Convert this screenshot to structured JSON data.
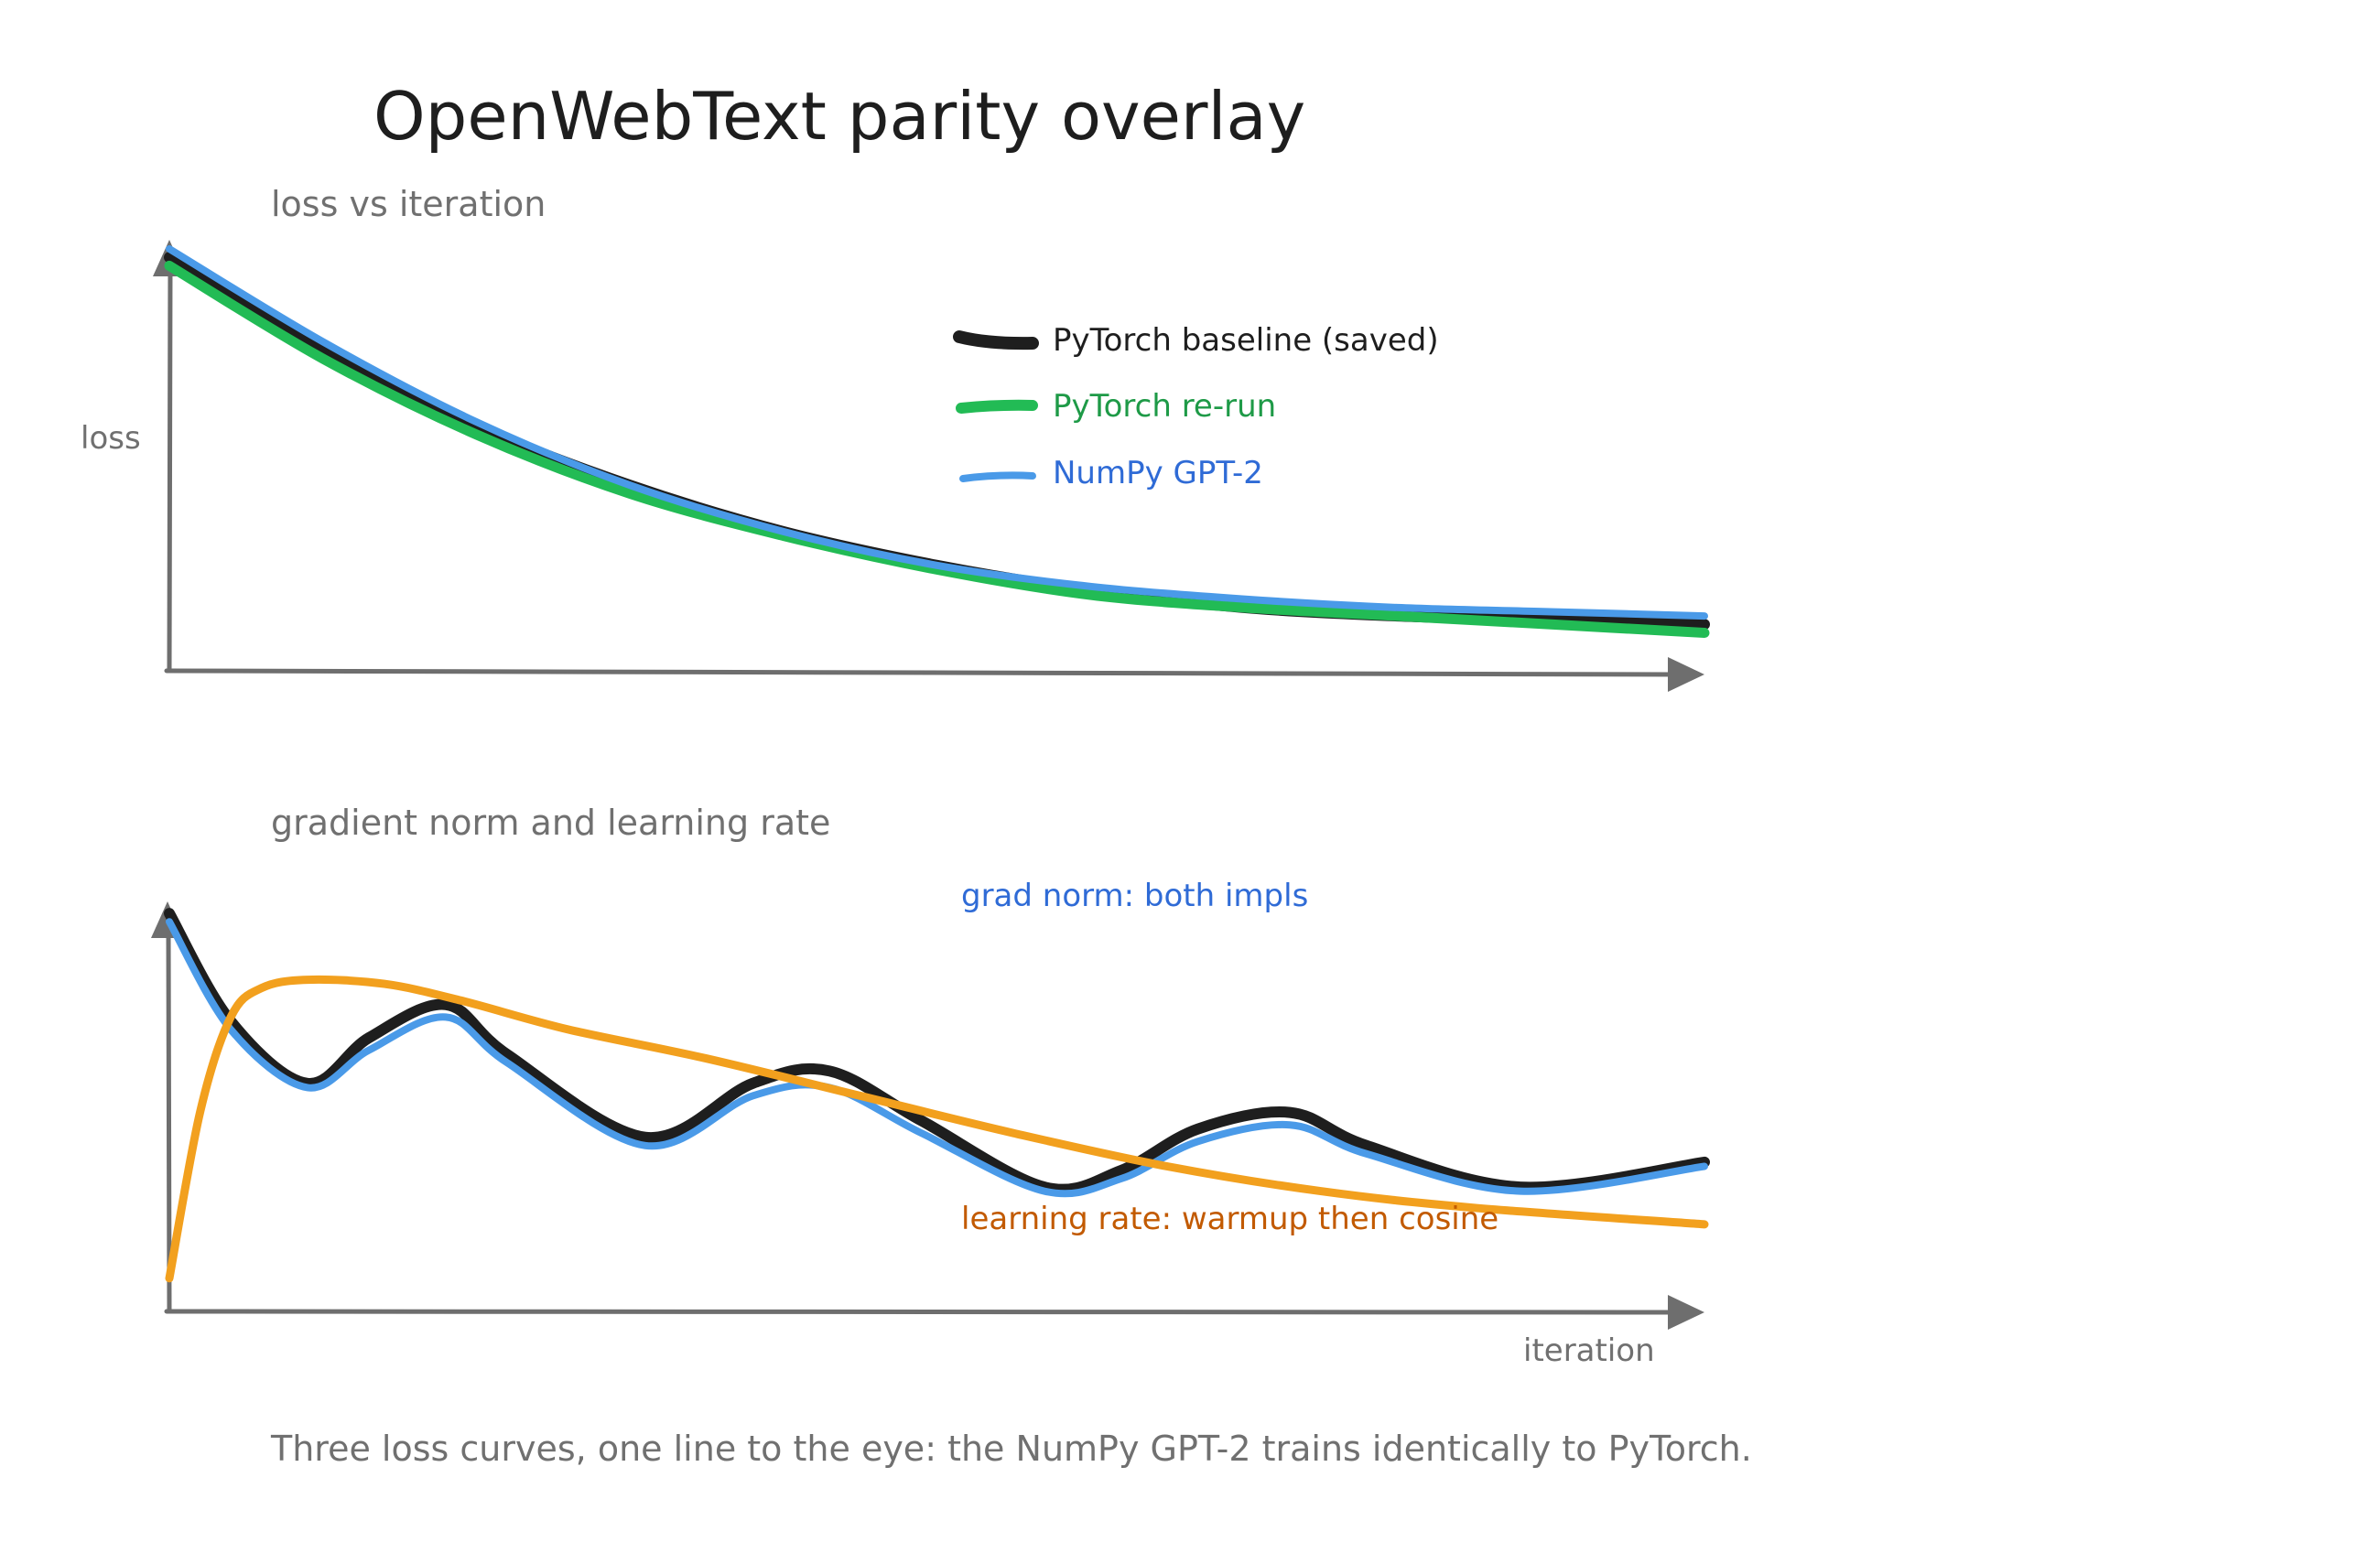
{
  "title": "OpenWebText parity overlay",
  "caption": "Three loss curves, one line to the eye: the NumPy GPT-2 trains identically to PyTorch.",
  "chart_data": [
    {
      "type": "line",
      "subtitle": "loss vs iteration",
      "xlabel": "",
      "ylabel": "loss",
      "xlim": [
        0,
        100
      ],
      "ylim": [
        0,
        100
      ],
      "grid": false,
      "legend_placement": "top-center",
      "series": [
        {
          "name": "PyTorch baseline (saved)",
          "color": "#1e1e1e",
          "x": [
            0,
            10,
            20,
            30,
            40,
            50,
            60,
            70,
            80,
            90,
            100
          ],
          "values": [
            98,
            76,
            58,
            44,
            33,
            25,
            19,
            15,
            13,
            12,
            11
          ]
        },
        {
          "name": "PyTorch re-run",
          "color": "#22bb55",
          "x": [
            0,
            10,
            20,
            30,
            40,
            50,
            60,
            70,
            80,
            90,
            100
          ],
          "values": [
            96,
            74,
            56,
            42,
            32,
            24,
            18,
            15,
            13,
            11,
            9
          ]
        },
        {
          "name": "NumPy GPT-2",
          "color": "#4a9ae8",
          "x": [
            0,
            10,
            20,
            30,
            40,
            50,
            60,
            70,
            80,
            90,
            100
          ],
          "values": [
            100,
            78,
            59,
            44,
            33,
            25,
            20,
            17,
            15,
            14,
            13
          ]
        }
      ]
    },
    {
      "type": "line",
      "subtitle": "gradient norm and learning rate",
      "xlabel": "iteration",
      "ylabel": "",
      "xlim": [
        0,
        100
      ],
      "ylim": [
        0,
        100
      ],
      "grid": false,
      "series": [
        {
          "color": "#1e1e1e",
          "x": [
            0,
            4,
            9,
            13,
            18,
            22,
            31,
            38,
            43,
            49,
            57,
            62,
            67,
            73,
            78,
            88,
            100
          ],
          "values": [
            96,
            70,
            55,
            66,
            74,
            62,
            42,
            55,
            58,
            46,
            30,
            34,
            44,
            48,
            40,
            30,
            36
          ]
        },
        {
          "color": "#4a9ae8",
          "x": [
            0,
            4,
            9,
            13,
            18,
            22,
            31,
            38,
            43,
            49,
            57,
            62,
            67,
            73,
            78,
            88,
            100
          ],
          "values": [
            94,
            68,
            54,
            63,
            71,
            60,
            40,
            52,
            54,
            43,
            29,
            32,
            41,
            45,
            38,
            29,
            35
          ]
        },
        {
          "color": "#f2a01e",
          "x": [
            0,
            2,
            4,
            6,
            9,
            14,
            19,
            26,
            35,
            45,
            55,
            65,
            75,
            85,
            100
          ],
          "values": [
            8,
            48,
            71,
            78,
            80,
            79,
            75,
            68,
            61,
            52,
            43,
            35,
            29,
            25,
            21
          ]
        }
      ],
      "annotations": [
        {
          "text": "grad norm: both impls",
          "color": "#2f6bd6"
        },
        {
          "text": "learning rate: warmup then cosine",
          "color": "#c25a00"
        }
      ]
    }
  ]
}
